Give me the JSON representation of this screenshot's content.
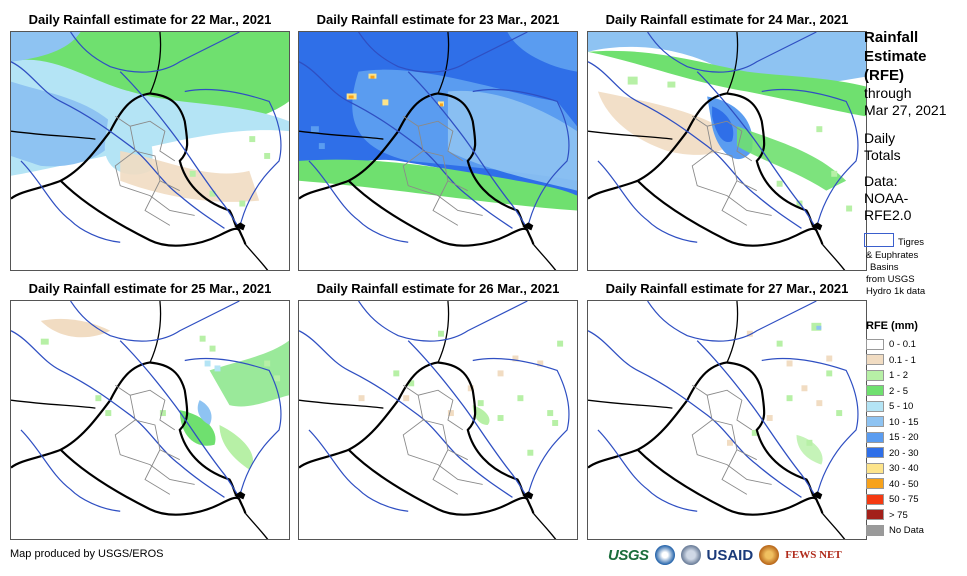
{
  "panels": [
    {
      "title": "Daily Rainfall estimate for 22 Mar., 2021",
      "pattern": "p1"
    },
    {
      "title": "Daily Rainfall estimate for 23 Mar., 2021",
      "pattern": "p2"
    },
    {
      "title": "Daily Rainfall estimate for 24 Mar., 2021",
      "pattern": "p3"
    },
    {
      "title": "Daily Rainfall estimate for 25 Mar., 2021",
      "pattern": "p4"
    },
    {
      "title": "Daily Rainfall estimate for 26 Mar., 2021",
      "pattern": "p5"
    },
    {
      "title": "Daily Rainfall estimate for 27 Mar., 2021",
      "pattern": "p6"
    }
  ],
  "sidebar": {
    "title_line1": "Rainfall",
    "title_line2": "Estimate",
    "title_line3": "(RFE)",
    "through_label": "through",
    "through_date": "Mar 27, 2021",
    "daily_line1": "Daily",
    "daily_line2": "Totals",
    "data_line1": "Data:",
    "data_line2": "NOAA-",
    "data_line3": "RFE2.0",
    "basin_line1": "Tigres",
    "basin_line2": "& Euphrates",
    "basin_line3": "Basins",
    "basin_line4": "from USGS",
    "basin_line5": "Hydro 1k data"
  },
  "legend": {
    "title": "RFE (mm)",
    "items": [
      {
        "label": "0 - 0.1",
        "color": "#ffffff"
      },
      {
        "label": "0.1 - 1",
        "color": "#f1dcc2"
      },
      {
        "label": "1 - 2",
        "color": "#b7f0a6"
      },
      {
        "label": "2 - 5",
        "color": "#6fe06f"
      },
      {
        "label": "5 - 10",
        "color": "#b4e4f5"
      },
      {
        "label": "10 - 15",
        "color": "#8ec3f2"
      },
      {
        "label": "15 - 20",
        "color": "#5a9cf0"
      },
      {
        "label": "20 - 30",
        "color": "#2f6fe8"
      },
      {
        "label": "30 - 40",
        "color": "#fde48b"
      },
      {
        "label": "40 - 50",
        "color": "#f7a21b"
      },
      {
        "label": "50 - 75",
        "color": "#f43a12"
      },
      {
        "label": "> 75",
        "color": "#a3201a"
      },
      {
        "label": "No Data",
        "color": "#9a9a9a"
      }
    ]
  },
  "footer": {
    "credit": "Map produced by USGS/EROS",
    "logo_usgs": "USGS",
    "logo_usaid": "USAID",
    "logo_fews": "FEWS NET"
  }
}
